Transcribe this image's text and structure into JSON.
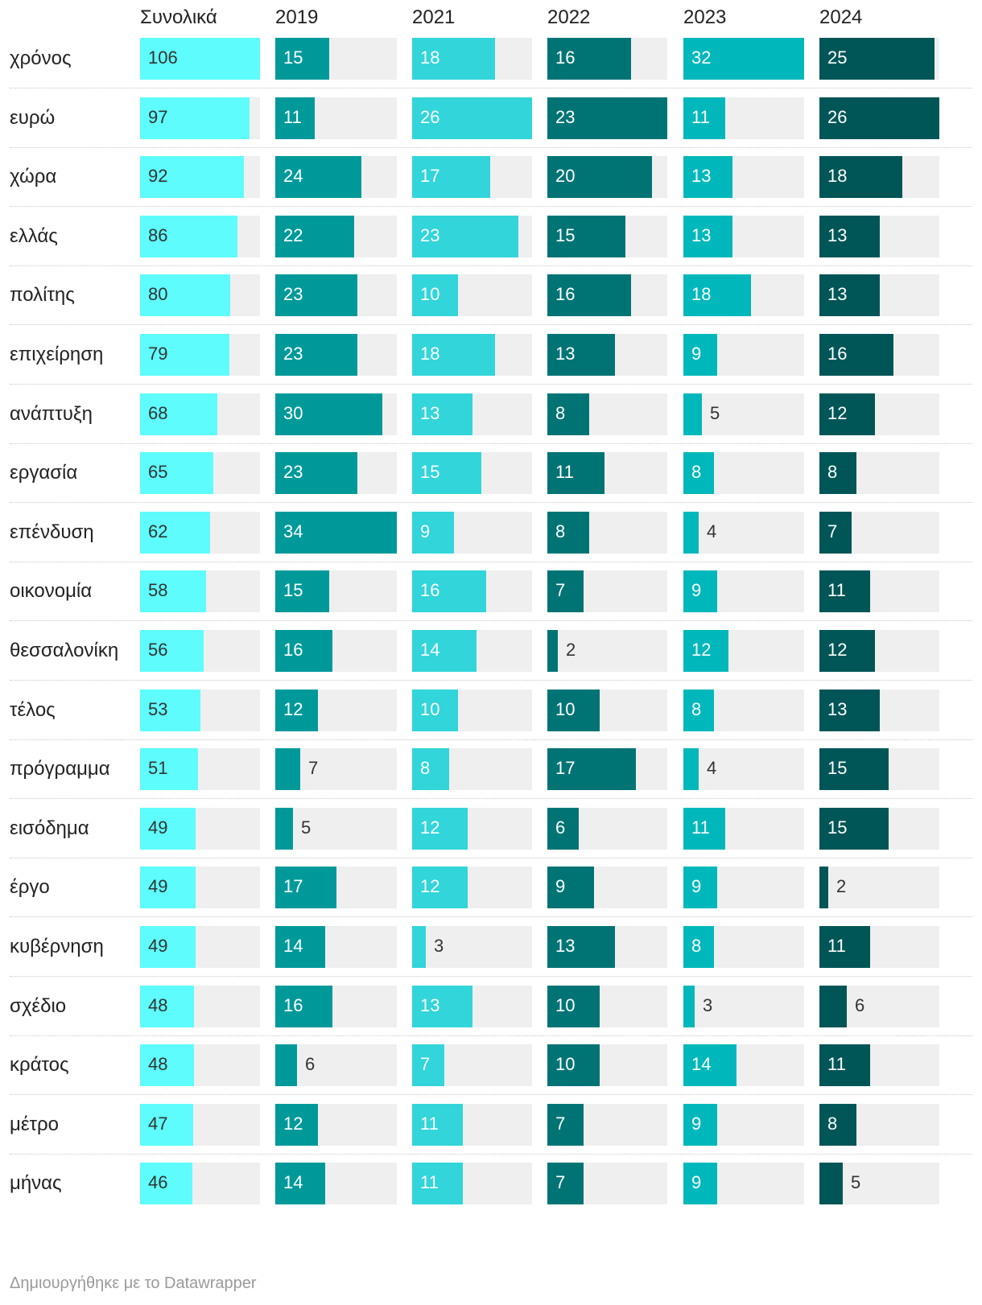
{
  "chart_data": {
    "type": "bar",
    "columns": [
      {
        "name": "Συνολικά",
        "color": "#5efcfc"
      },
      {
        "name": "2019",
        "color": "#00999a"
      },
      {
        "name": "2021",
        "color": "#31d5da"
      },
      {
        "name": "2022",
        "color": "#007474"
      },
      {
        "name": "2023",
        "color": "#00b8bb"
      },
      {
        "name": "2024",
        "color": "#005657"
      }
    ],
    "categories": [
      "χρόνος",
      "ευρώ",
      "χώρα",
      "ελλάς",
      "πολίτης",
      "επιχείρηση",
      "ανάπτυξη",
      "εργασία",
      "επένδυση",
      "οικονομία",
      "θεσσαλονίκη",
      "τέλος",
      "πρόγραμμα",
      "εισόδημα",
      "έργο",
      "κυβέρνηση",
      "σχέδιο",
      "κράτος",
      "μέτρο",
      "μήνας"
    ],
    "series": [
      {
        "name": "Συνολικά",
        "values": [
          106,
          97,
          92,
          86,
          80,
          79,
          68,
          65,
          62,
          58,
          56,
          53,
          51,
          49,
          49,
          49,
          48,
          48,
          47,
          46
        ]
      },
      {
        "name": "2019",
        "values": [
          15,
          11,
          24,
          22,
          23,
          23,
          30,
          23,
          34,
          15,
          16,
          12,
          7,
          5,
          17,
          14,
          16,
          6,
          12,
          14
        ]
      },
      {
        "name": "2021",
        "values": [
          18,
          26,
          17,
          23,
          10,
          18,
          13,
          15,
          9,
          16,
          14,
          10,
          8,
          12,
          12,
          3,
          13,
          7,
          11,
          11
        ]
      },
      {
        "name": "2022",
        "values": [
          16,
          23,
          20,
          15,
          16,
          13,
          8,
          11,
          8,
          7,
          2,
          10,
          17,
          6,
          9,
          13,
          10,
          10,
          7,
          7
        ]
      },
      {
        "name": "2023",
        "values": [
          32,
          11,
          13,
          13,
          18,
          9,
          5,
          8,
          4,
          9,
          12,
          8,
          4,
          11,
          9,
          8,
          3,
          14,
          9,
          9
        ]
      },
      {
        "name": "2024",
        "values": [
          25,
          26,
          18,
          13,
          13,
          16,
          12,
          8,
          7,
          11,
          12,
          13,
          15,
          15,
          2,
          11,
          6,
          11,
          8,
          5
        ]
      }
    ],
    "xlim": [
      [
        0,
        106
      ],
      [
        0,
        34
      ],
      [
        0,
        26
      ],
      [
        0,
        23
      ],
      [
        0,
        32
      ],
      [
        0,
        26
      ]
    ]
  },
  "footer": "Δημιουργήθηκε με το Datawrapper"
}
